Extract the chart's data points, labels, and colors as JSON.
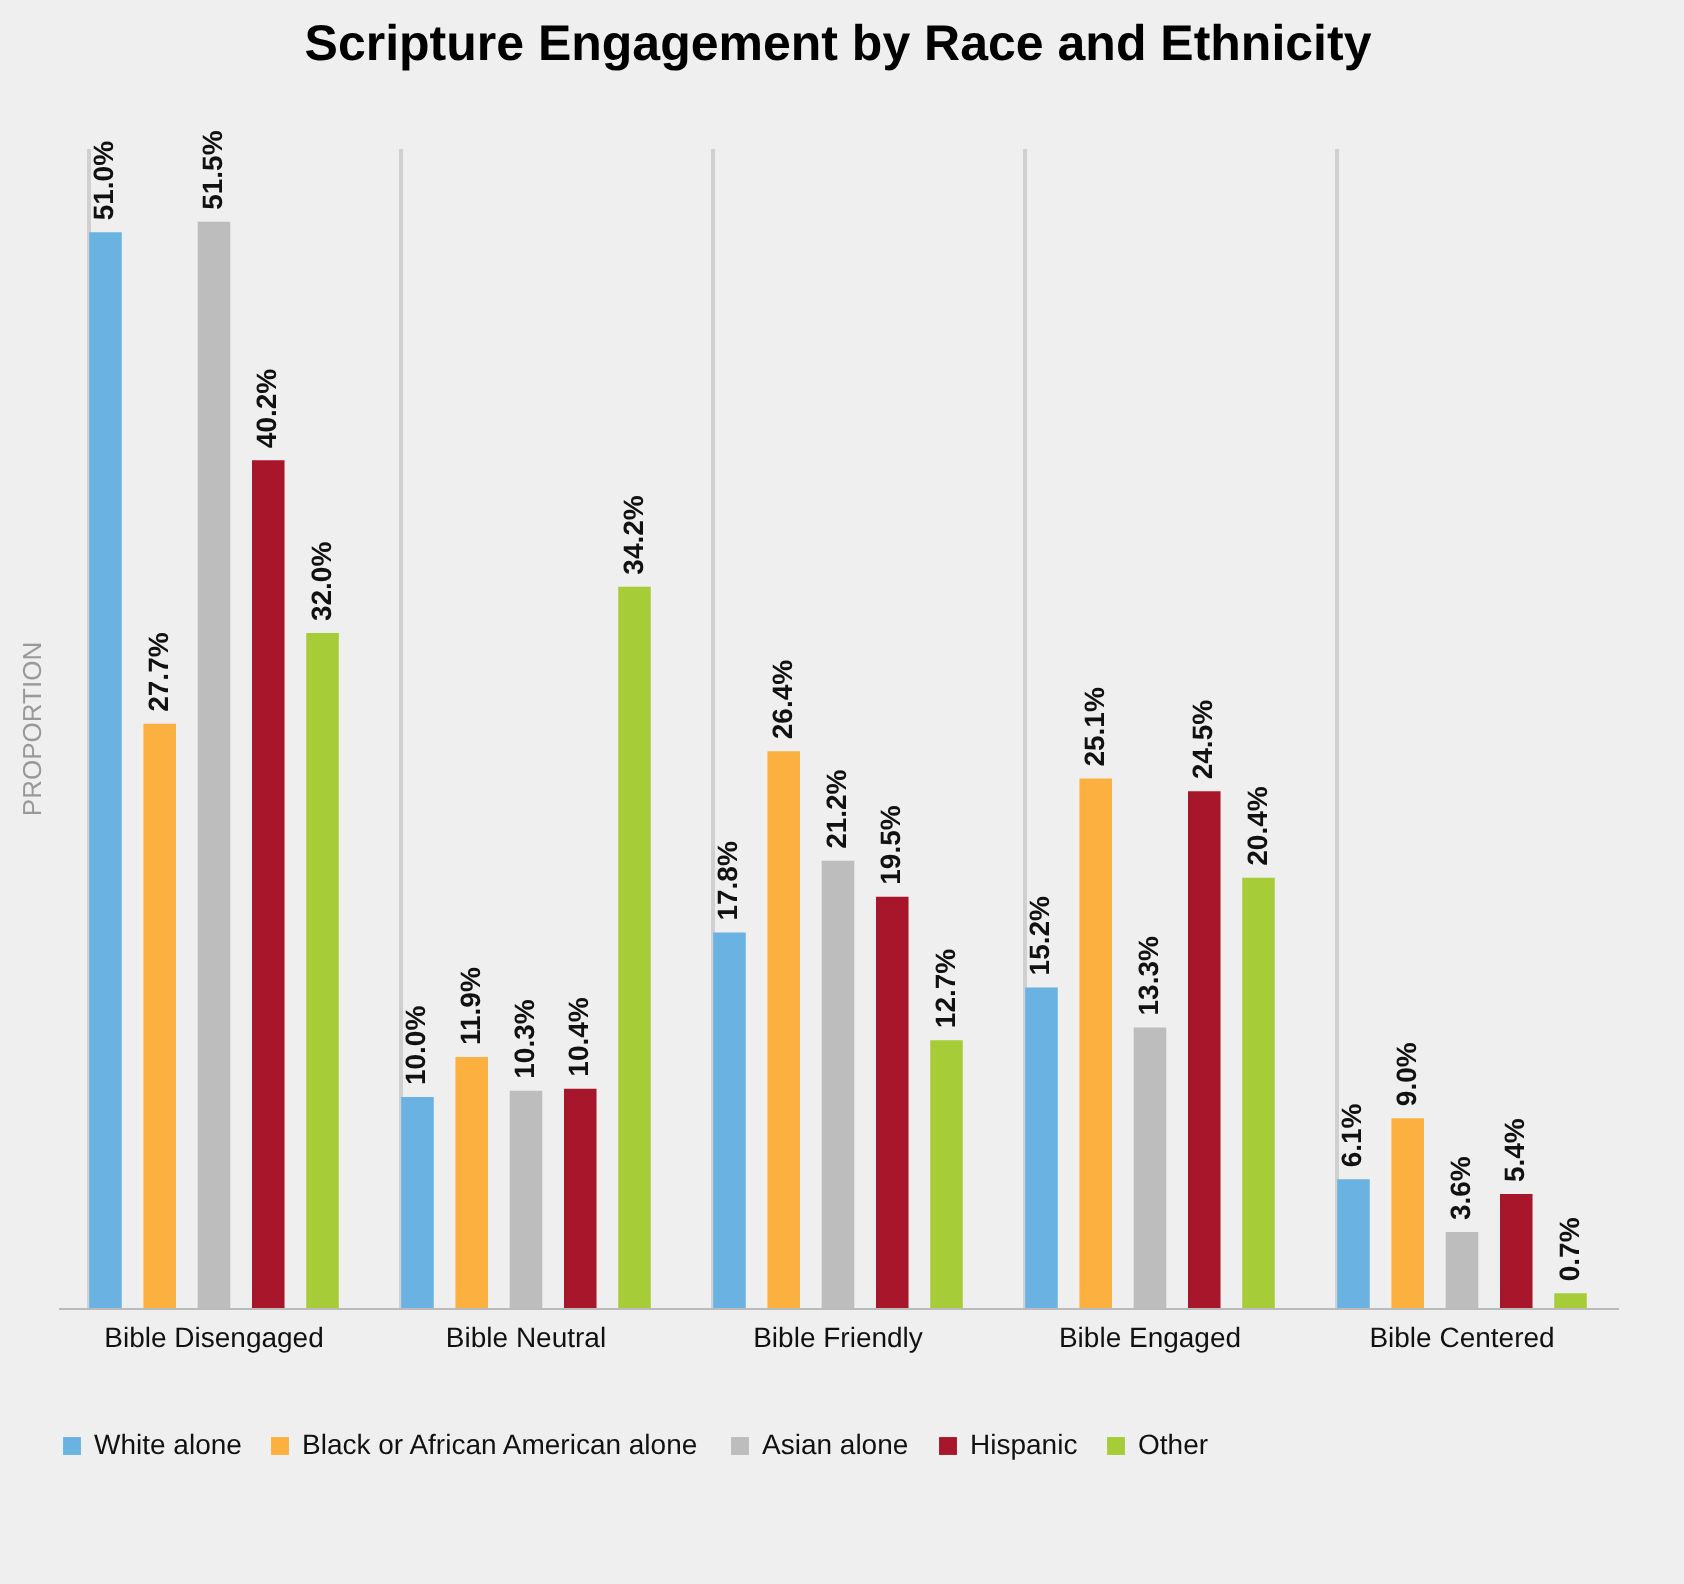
{
  "chart_data": {
    "type": "bar",
    "title": "Scripture Engagement by Race and Ethnicity",
    "ylabel": "PROPORTION",
    "categories": [
      "Bible Disengaged",
      "Bible Neutral",
      "Bible Friendly",
      "Bible Engaged",
      "Bible Centered"
    ],
    "series": [
      {
        "name": "White alone",
        "color": "#6ab2e2",
        "values": [
          51.0,
          10.0,
          17.8,
          15.2,
          6.1
        ],
        "value_labels": [
          "51.0%",
          "10.0%",
          "17.8%",
          "15.2%",
          "6.1%"
        ]
      },
      {
        "name": "Black or African American alone",
        "color": "#fbb03f",
        "values": [
          27.7,
          11.9,
          26.4,
          25.1,
          9.0
        ],
        "value_labels": [
          "27.7%",
          "11.9%",
          "26.4%",
          "25.1%",
          "9.0%"
        ]
      },
      {
        "name": "Asian alone",
        "color": "#bdbdbd",
        "values": [
          51.5,
          10.3,
          21.2,
          13.3,
          3.6
        ],
        "value_labels": [
          "51.5%",
          "10.3%",
          "21.2%",
          "13.3%",
          "3.6%"
        ]
      },
      {
        "name": "Hispanic",
        "color": "#a8162b",
        "values": [
          40.2,
          10.4,
          19.5,
          24.5,
          5.4
        ],
        "value_labels": [
          "40.2%",
          "10.4%",
          "19.5%",
          "24.5%",
          "5.4%"
        ]
      },
      {
        "name": "Other",
        "color": "#a6cc38",
        "values": [
          32.0,
          34.2,
          12.7,
          20.4,
          0.7
        ],
        "value_labels": [
          "32.0%",
          "34.2%",
          "12.7%",
          "20.4%",
          "0.7%"
        ]
      }
    ],
    "grid": "x",
    "legend": "bottom"
  }
}
